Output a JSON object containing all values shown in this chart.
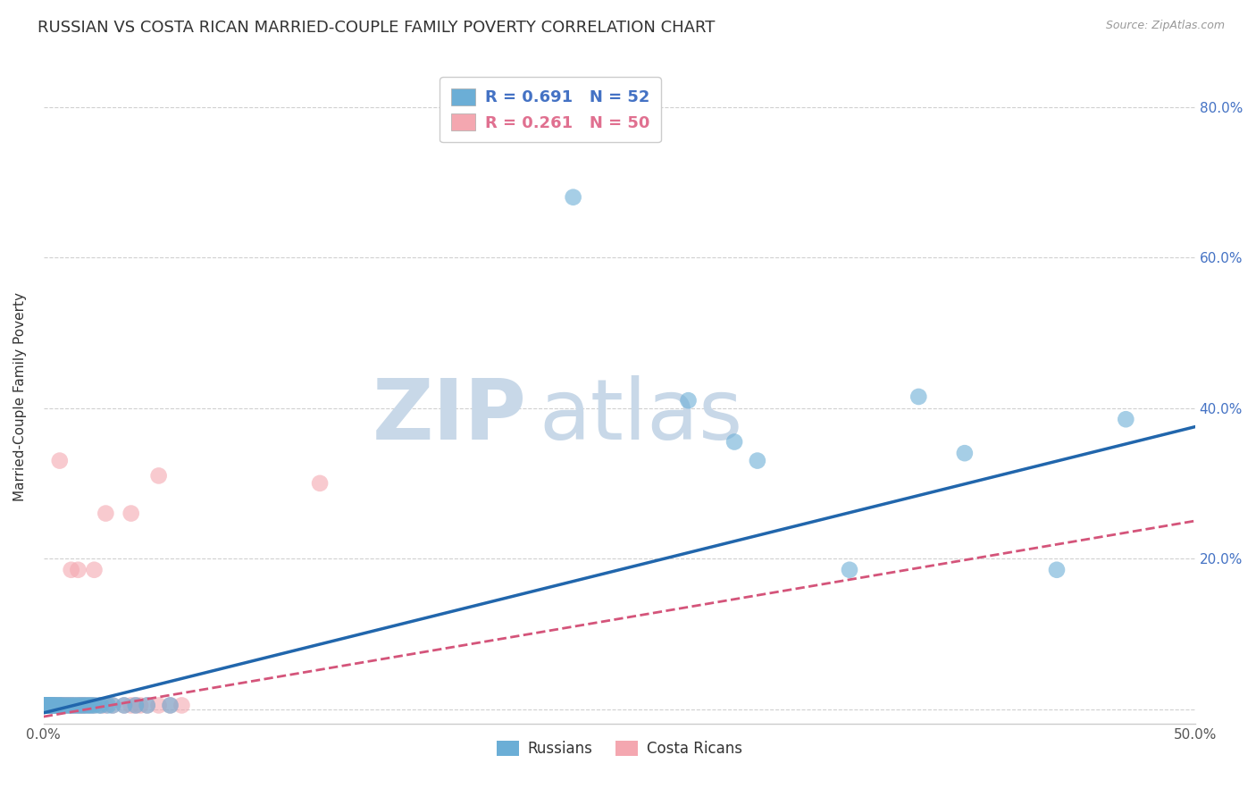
{
  "title": "RUSSIAN VS COSTA RICAN MARRIED-COUPLE FAMILY POVERTY CORRELATION CHART",
  "source": "Source: ZipAtlas.com",
  "ylabel": "Married-Couple Family Poverty",
  "xlim": [
    0.0,
    0.5
  ],
  "ylim": [
    -0.02,
    0.85
  ],
  "xticks": [
    0.0,
    0.1,
    0.2,
    0.3,
    0.4,
    0.5
  ],
  "yticks": [
    0.0,
    0.2,
    0.4,
    0.6,
    0.8
  ],
  "xticklabels": [
    "0.0%",
    "",
    "",
    "",
    "",
    "50.0%"
  ],
  "yticklabels_right": [
    "20.0%",
    "40.0%",
    "60.0%",
    "80.0%"
  ],
  "russian_color": "#6baed6",
  "costa_rican_color": "#f4a7b0",
  "russian_line_color": "#2166ac",
  "costa_rican_line_color": "#d4547a",
  "right_tick_color": "#4472c4",
  "russian_R": 0.691,
  "russian_N": 52,
  "costa_rican_R": 0.261,
  "costa_rican_N": 50,
  "russian_scatter": [
    [
      0.001,
      0.005
    ],
    [
      0.001,
      0.005
    ],
    [
      0.001,
      0.005
    ],
    [
      0.001,
      0.005
    ],
    [
      0.001,
      0.005
    ],
    [
      0.001,
      0.005
    ],
    [
      0.001,
      0.005
    ],
    [
      0.002,
      0.005
    ],
    [
      0.002,
      0.005
    ],
    [
      0.002,
      0.005
    ],
    [
      0.003,
      0.005
    ],
    [
      0.003,
      0.005
    ],
    [
      0.003,
      0.005
    ],
    [
      0.004,
      0.005
    ],
    [
      0.004,
      0.005
    ],
    [
      0.005,
      0.005
    ],
    [
      0.005,
      0.005
    ],
    [
      0.006,
      0.005
    ],
    [
      0.007,
      0.005
    ],
    [
      0.007,
      0.005
    ],
    [
      0.008,
      0.005
    ],
    [
      0.009,
      0.005
    ],
    [
      0.01,
      0.005
    ],
    [
      0.011,
      0.005
    ],
    [
      0.012,
      0.005
    ],
    [
      0.013,
      0.005
    ],
    [
      0.014,
      0.005
    ],
    [
      0.015,
      0.005
    ],
    [
      0.016,
      0.005
    ],
    [
      0.017,
      0.005
    ],
    [
      0.018,
      0.005
    ],
    [
      0.019,
      0.005
    ],
    [
      0.02,
      0.005
    ],
    [
      0.021,
      0.005
    ],
    [
      0.022,
      0.005
    ],
    [
      0.024,
      0.005
    ],
    [
      0.025,
      0.005
    ],
    [
      0.028,
      0.005
    ],
    [
      0.03,
      0.005
    ],
    [
      0.035,
      0.005
    ],
    [
      0.04,
      0.005
    ],
    [
      0.045,
      0.005
    ],
    [
      0.055,
      0.005
    ],
    [
      0.23,
      0.68
    ],
    [
      0.28,
      0.41
    ],
    [
      0.3,
      0.355
    ],
    [
      0.31,
      0.33
    ],
    [
      0.35,
      0.185
    ],
    [
      0.38,
      0.415
    ],
    [
      0.4,
      0.34
    ],
    [
      0.44,
      0.185
    ],
    [
      0.47,
      0.385
    ]
  ],
  "costa_rican_scatter": [
    [
      0.001,
      0.005
    ],
    [
      0.001,
      0.005
    ],
    [
      0.001,
      0.005
    ],
    [
      0.001,
      0.005
    ],
    [
      0.001,
      0.005
    ],
    [
      0.002,
      0.005
    ],
    [
      0.002,
      0.005
    ],
    [
      0.002,
      0.005
    ],
    [
      0.003,
      0.005
    ],
    [
      0.003,
      0.005
    ],
    [
      0.003,
      0.005
    ],
    [
      0.004,
      0.005
    ],
    [
      0.004,
      0.005
    ],
    [
      0.005,
      0.005
    ],
    [
      0.005,
      0.005
    ],
    [
      0.006,
      0.005
    ],
    [
      0.006,
      0.005
    ],
    [
      0.007,
      0.005
    ],
    [
      0.008,
      0.005
    ],
    [
      0.008,
      0.005
    ],
    [
      0.009,
      0.005
    ],
    [
      0.01,
      0.005
    ],
    [
      0.011,
      0.005
    ],
    [
      0.012,
      0.005
    ],
    [
      0.013,
      0.005
    ],
    [
      0.015,
      0.005
    ],
    [
      0.016,
      0.005
    ],
    [
      0.017,
      0.005
    ],
    [
      0.018,
      0.005
    ],
    [
      0.02,
      0.005
    ],
    [
      0.022,
      0.005
    ],
    [
      0.025,
      0.005
    ],
    [
      0.027,
      0.005
    ],
    [
      0.03,
      0.005
    ],
    [
      0.035,
      0.005
    ],
    [
      0.038,
      0.005
    ],
    [
      0.04,
      0.005
    ],
    [
      0.042,
      0.005
    ],
    [
      0.045,
      0.005
    ],
    [
      0.05,
      0.005
    ],
    [
      0.055,
      0.005
    ],
    [
      0.06,
      0.005
    ],
    [
      0.007,
      0.33
    ],
    [
      0.012,
      0.185
    ],
    [
      0.015,
      0.185
    ],
    [
      0.022,
      0.185
    ],
    [
      0.027,
      0.26
    ],
    [
      0.038,
      0.26
    ],
    [
      0.05,
      0.31
    ],
    [
      0.12,
      0.3
    ]
  ],
  "background_color": "#ffffff",
  "grid_color": "#d0d0d0",
  "title_fontsize": 13,
  "axis_label_fontsize": 11,
  "tick_fontsize": 11,
  "watermark_zip": "ZIP",
  "watermark_atlas": "atlas",
  "watermark_color_zip": "#c8d8e8",
  "watermark_color_atlas": "#c8d8e8"
}
